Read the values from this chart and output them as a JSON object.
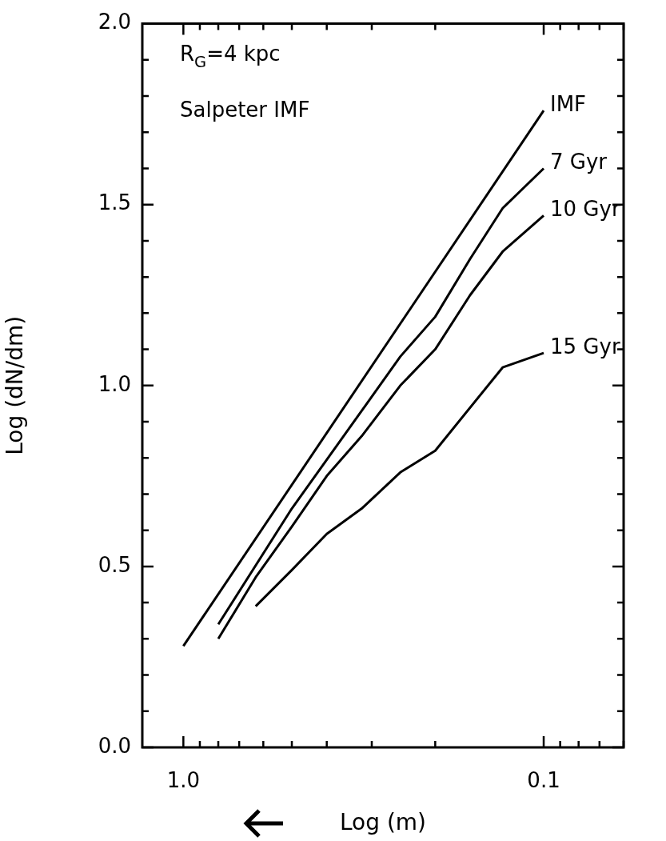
{
  "chart_data": {
    "type": "line",
    "xlabel": "Log (m)",
    "ylabel": "Log (dN/dm)",
    "log": "x",
    "grid": false,
    "legend": "right",
    "marker": "none",
    "line_style": "solid",
    "xlim": [
      1.3,
      0.06
    ],
    "xticks": [
      {
        "value": 1,
        "label": "1.0"
      },
      {
        "value": 0.9,
        "label": null
      },
      {
        "value": 0.8,
        "label": null
      },
      {
        "value": 0.7,
        "label": null
      },
      {
        "value": 0.6,
        "label": null
      },
      {
        "value": 0.5,
        "label": null
      },
      {
        "value": 0.4,
        "label": null
      },
      {
        "value": 0.3,
        "label": null
      },
      {
        "value": 0.2,
        "label": null
      },
      {
        "value": 0.1,
        "label": "0.1"
      },
      {
        "value": 0.09,
        "label": null
      },
      {
        "value": 0.08,
        "label": null
      },
      {
        "value": 0.07,
        "label": null
      },
      {
        "value": 0.06,
        "label": null
      }
    ],
    "ylim": [
      0,
      2
    ],
    "yticks": [
      {
        "value": 0,
        "label": "0.0"
      },
      {
        "value": 0.1,
        "label": null
      },
      {
        "value": 0.2,
        "label": null
      },
      {
        "value": 0.3,
        "label": null
      },
      {
        "value": 0.4,
        "label": null
      },
      {
        "value": 0.5,
        "label": "0.5"
      },
      {
        "value": 0.6,
        "label": null
      },
      {
        "value": 0.7,
        "label": null
      },
      {
        "value": 0.8,
        "label": null
      },
      {
        "value": 0.9,
        "label": null
      },
      {
        "value": 1,
        "label": "1.0"
      },
      {
        "value": 1.1,
        "label": null
      },
      {
        "value": 1.2,
        "label": null
      },
      {
        "value": 1.3,
        "label": null
      },
      {
        "value": 1.4,
        "label": null
      },
      {
        "value": 1.5,
        "label": "1.5"
      },
      {
        "value": 1.6,
        "label": null
      },
      {
        "value": 1.7,
        "label": null
      },
      {
        "value": 1.8,
        "label": null
      },
      {
        "value": 1.9,
        "label": null
      },
      {
        "value": 2,
        "label": "2.0"
      }
    ],
    "series": [
      {
        "name": "IMF",
        "color": "#000000",
        "x": [
          1.0,
          0.1
        ],
        "values": [
          0.28,
          1.76
        ]
      },
      {
        "name": "7 Gyr",
        "color": "#000000",
        "x": [
          0.8,
          0.5,
          0.32,
          0.25,
          0.2,
          0.16,
          0.13,
          0.1
        ],
        "values": [
          0.34,
          0.66,
          0.93,
          1.08,
          1.19,
          1.35,
          1.49,
          1.6
        ]
      },
      {
        "name": "10 Gyr",
        "color": "#000000",
        "x": [
          0.8,
          0.63,
          0.5,
          0.4,
          0.32,
          0.25,
          0.2,
          0.16,
          0.13,
          0.1
        ],
        "values": [
          0.3,
          0.47,
          0.61,
          0.75,
          0.86,
          1.0,
          1.1,
          1.25,
          1.37,
          1.47
        ]
      },
      {
        "name": "15 Gyr",
        "color": "#000000",
        "x": [
          0.63,
          0.5,
          0.4,
          0.32,
          0.25,
          0.2,
          0.13,
          0.1
        ],
        "values": [
          0.39,
          0.49,
          0.59,
          0.66,
          0.76,
          0.82,
          1.05,
          1.09
        ]
      }
    ],
    "annotations": [
      "R$_{G}$=4 kpc",
      "Salpeter IMF"
    ]
  }
}
